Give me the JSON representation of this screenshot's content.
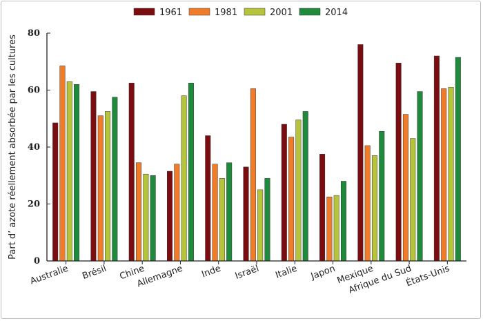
{
  "chart_data": {
    "type": "bar",
    "title": "",
    "xlabel": "",
    "ylabel": "Part d’ azote réellement absorbée par les cultures",
    "ylim": [
      0,
      80
    ],
    "yticks": [
      0,
      20,
      40,
      60,
      80
    ],
    "grid": false,
    "legend_position": "top-center",
    "categories": [
      "Australie",
      "Brésil",
      "Chine",
      "Allemagne",
      "Inde",
      "Israël",
      "Italie",
      "Japon",
      "Mexique",
      "Afrique du Sud",
      "États-Unis"
    ],
    "series": [
      {
        "name": "1961",
        "color": "#7b0c10",
        "values": [
          48.5,
          59.5,
          62.5,
          31.5,
          44,
          33,
          48,
          37.5,
          76,
          69.5,
          72
        ]
      },
      {
        "name": "1981",
        "color": "#f07c2a",
        "values": [
          68.5,
          51,
          34.5,
          34,
          34,
          60.5,
          43.5,
          22.5,
          40.5,
          51.5,
          60.5
        ]
      },
      {
        "name": "2001",
        "color": "#b5c43a",
        "values": [
          63,
          52.5,
          30.5,
          58,
          29,
          25,
          49.5,
          23,
          37,
          43,
          61
        ]
      },
      {
        "name": "2014",
        "color": "#1f8a3c",
        "values": [
          62,
          57.5,
          30,
          62.5,
          34.5,
          29,
          52.5,
          28,
          45.5,
          59.5,
          71.5
        ]
      }
    ]
  }
}
